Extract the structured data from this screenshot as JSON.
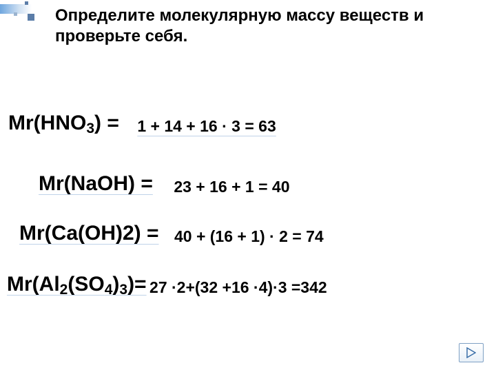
{
  "title": "Определите молекулярную массу веществ и проверьте себя.",
  "rows": [
    {
      "formula_html": "Mr(HNO<span class='sub'>3</span>) =",
      "calc": "1 + 14 + 16 · 3 = 63"
    },
    {
      "formula_html": "Mr(NaOH) =",
      "calc": "23 + 16 + 1 = 40"
    },
    {
      "formula_html": "Mr(Ca(OH)2) =",
      "calc": "40 + (16 + 1) · 2 = 74"
    },
    {
      "formula_html": "Mr(Al<span class='sub'>2</span>(SO<span class='sub'>4</span>)<span class='sub'>3</span>)=",
      "calc": "27 ·2+(32 +16 ·4)·3 =342"
    }
  ],
  "colors": {
    "accent": "#5b7da8",
    "underline": "#bfd2e8",
    "text": "#000000"
  }
}
